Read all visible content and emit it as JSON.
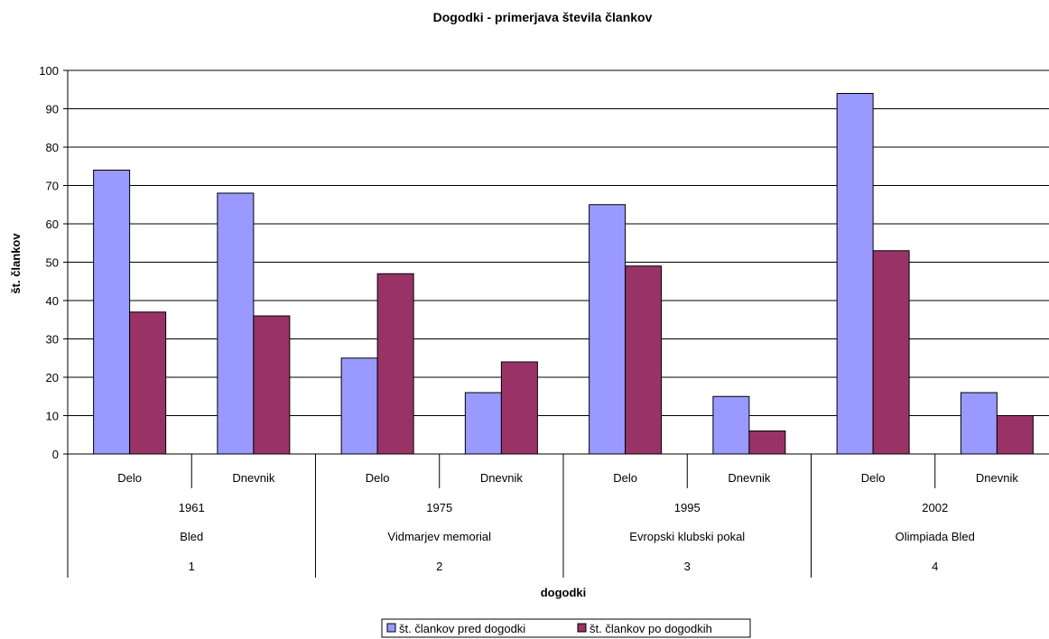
{
  "chart_data": {
    "type": "bar",
    "title": "Dogodki - primerjava števila člankov",
    "xlabel": "dogodki",
    "ylabel": "št. člankov",
    "ylim": [
      0,
      100
    ],
    "ytick_step": 10,
    "grid": true,
    "legend_position": "bottom",
    "categories": [
      "Delo",
      "Dnevnik",
      "Delo",
      "Dnevnik",
      "Delo",
      "Dnevnik",
      "Delo",
      "Dnevnik"
    ],
    "groups": [
      {
        "year": "1961",
        "event": "Bled",
        "number": "1"
      },
      {
        "year": "1975",
        "event": "Vidmarjev memorial",
        "number": "2"
      },
      {
        "year": "1995",
        "event": "Evropski klubski pokal",
        "number": "3"
      },
      {
        "year": "2002",
        "event": "Olimpiada Bled",
        "number": "4"
      }
    ],
    "series": [
      {
        "name": "št. člankov pred dogodki",
        "color": "#9999ff",
        "values": [
          74,
          68,
          25,
          16,
          65,
          15,
          94,
          16
        ]
      },
      {
        "name": "št. člankov po dogodkih",
        "color": "#993366",
        "values": [
          37,
          36,
          47,
          24,
          49,
          6,
          53,
          10
        ]
      }
    ]
  }
}
